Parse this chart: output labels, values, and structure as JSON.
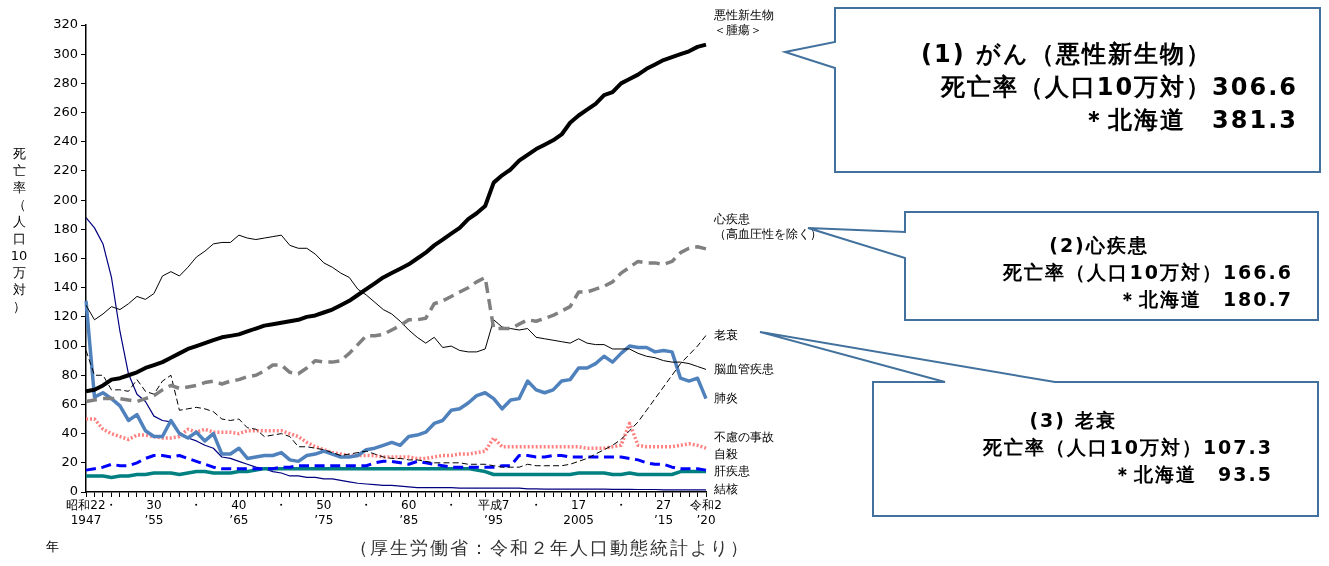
{
  "chart_data": {
    "type": "line",
    "ylabel": "死亡率（人口10万対）",
    "xlabel": "年",
    "annotations": [
      "(1) がん（悪性新生物）",
      "死亡率（人口10万対）306.6",
      "＊北海道　381.3",
      "(2)心疾患",
      "死亡率（人口10万対）166.6",
      "＊北海道　180.7",
      "(3) 老衰",
      "死亡率（人口10万対）107.3",
      "＊北海道　93.5",
      "（厚生労働省：令和２年人口動態統計より）"
    ],
    "categories": [
      "昭和22\n1947",
      null,
      null,
      "・",
      null,
      null,
      null,
      null,
      "30\n’55",
      null,
      null,
      null,
      null,
      "・",
      null,
      null,
      null,
      null,
      "40\n’65",
      null,
      null,
      null,
      null,
      "・",
      null,
      null,
      null,
      null,
      "50\n’75",
      null,
      null,
      null,
      null,
      "・",
      null,
      null,
      null,
      null,
      "60\n’85",
      null,
      null,
      null,
      null,
      "・",
      null,
      null,
      null,
      null,
      "平成7\n’95",
      null,
      null,
      null,
      null,
      "・",
      null,
      null,
      null,
      null,
      "17\n2005",
      null,
      null,
      null,
      null,
      "・",
      null,
      null,
      null,
      null,
      "27\n’15",
      null,
      null,
      null,
      null,
      "令和2\n’20"
    ],
    "ylim": [
      0,
      320
    ],
    "yticks": [
      0,
      20,
      40,
      60,
      80,
      100,
      120,
      140,
      160,
      180,
      200,
      220,
      240,
      260,
      280,
      300,
      320
    ],
    "grid": false,
    "legend": false,
    "marker": "none",
    "series": [
      {
        "name": "悪性新生物＜腫瘍＞",
        "color": "#000000",
        "line_style": "solid",
        "values": [
          69,
          70,
          73,
          77,
          78,
          80,
          82,
          85,
          87,
          89,
          92,
          95,
          98,
          100,
          102,
          104,
          106,
          107,
          108,
          110,
          112,
          114,
          115,
          116,
          117,
          118,
          120,
          121,
          123,
          125,
          128,
          131,
          135,
          139,
          143,
          147,
          150,
          153,
          156,
          160,
          164,
          169,
          173,
          177,
          181,
          187,
          191,
          196,
          212,
          217,
          221,
          227,
          231,
          235,
          238,
          241,
          245,
          253,
          258,
          262,
          266,
          272,
          274,
          280,
          283,
          286,
          290,
          293,
          296,
          298,
          300,
          302,
          305,
          306.6
        ]
      },
      {
        "name": "心疾患（高血圧性を除く）",
        "color": "#808080",
        "line_style": "dashed",
        "values": [
          62,
          63,
          64,
          64,
          64,
          63,
          62,
          64,
          66,
          70,
          73,
          71,
          72,
          73,
          75,
          76,
          74,
          76,
          77,
          79,
          80,
          83,
          87,
          87,
          82,
          81,
          85,
          90,
          89,
          89,
          90,
          95,
          101,
          107,
          107,
          108,
          111,
          114,
          118,
          118,
          119,
          129,
          131,
          134,
          137,
          140,
          144,
          147,
          112,
          112,
          112,
          115,
          118,
          117,
          119,
          121,
          124,
          127,
          137,
          137,
          139,
          141,
          144,
          150,
          154,
          158,
          157,
          157,
          156,
          158,
          164,
          167,
          168,
          166.6
        ]
      },
      {
        "name": "老衰",
        "color": "#000000",
        "line_style": "dashed",
        "values": [
          97,
          80,
          80,
          70,
          70,
          69,
          77,
          69,
          67,
          76,
          80,
          56,
          57,
          58,
          57,
          55,
          50,
          49,
          50,
          44,
          43,
          38,
          39,
          40,
          38,
          31,
          31,
          30,
          29,
          27,
          25,
          26,
          27,
          28,
          26,
          24,
          23,
          23,
          22,
          22,
          21,
          20,
          20,
          20,
          20,
          19,
          19,
          19,
          18,
          17,
          17,
          17,
          19,
          18,
          18,
          18,
          18,
          19,
          21,
          23,
          26,
          29,
          32,
          36,
          42,
          48,
          56,
          64,
          72,
          80,
          88,
          94,
          100,
          107.3
        ]
      },
      {
        "name": "脳血管疾患",
        "color": "#000000",
        "line_style": "solid",
        "values": [
          128,
          118,
          122,
          127,
          125,
          129,
          134,
          132,
          136,
          148,
          151,
          148,
          154,
          161,
          165,
          170,
          171,
          171,
          176,
          174,
          173,
          174,
          175,
          176,
          169,
          167,
          167,
          163,
          157,
          154,
          150,
          147,
          139,
          135,
          130,
          125,
          122,
          117,
          111,
          106,
          102,
          106,
          99,
          100,
          97,
          96,
          96,
          98,
          118,
          113,
          112,
          111,
          112,
          106,
          105,
          104,
          103,
          102,
          105,
          102,
          101,
          101,
          98,
          98,
          98,
          95,
          93,
          92,
          90,
          89,
          89,
          88,
          86,
          84
        ]
      },
      {
        "name": "肺炎",
        "color": "#4f81bd",
        "line_style": "solid",
        "values": [
          131,
          65,
          68,
          64,
          59,
          49,
          53,
          42,
          38,
          38,
          49,
          40,
          37,
          41,
          35,
          40,
          26,
          26,
          30,
          23,
          24,
          25,
          25,
          27,
          22,
          21,
          25,
          26,
          28,
          26,
          24,
          24,
          25,
          29,
          30,
          32,
          34,
          32,
          38,
          39,
          41,
          47,
          49,
          56,
          57,
          61,
          66,
          68,
          64,
          57,
          63,
          64,
          76,
          70,
          68,
          70,
          76,
          77,
          85,
          85,
          88,
          93,
          89,
          95,
          100,
          99,
          99,
          96,
          97,
          96,
          78,
          76,
          78,
          64
        ]
      },
      {
        "name": "不慮の事故",
        "color": "#ff8080",
        "line_style": "dotted",
        "values": [
          50,
          50,
          43,
          40,
          38,
          36,
          39,
          39,
          38,
          37,
          37,
          38,
          43,
          41,
          43,
          41,
          41,
          41,
          40,
          42,
          42,
          42,
          42,
          42,
          40,
          38,
          34,
          31,
          29,
          27,
          26,
          25,
          25,
          25,
          25,
          24,
          24,
          24,
          24,
          23,
          23,
          24,
          25,
          25,
          26,
          26,
          27,
          28,
          37,
          31,
          31,
          31,
          31,
          31,
          31,
          31,
          31,
          31,
          31,
          30,
          30,
          30,
          31,
          32,
          47,
          32,
          31,
          31,
          31,
          31,
          32,
          33,
          32,
          30
        ]
      },
      {
        "name": "自殺",
        "color": "#0000ff",
        "line_style": "dashed",
        "values": [
          15,
          16,
          17,
          19,
          18,
          18,
          20,
          23,
          25,
          25,
          24,
          25,
          23,
          21,
          19,
          17,
          16,
          16,
          16,
          16,
          16,
          16,
          16,
          17,
          17,
          18,
          18,
          18,
          18,
          18,
          18,
          18,
          18,
          18,
          20,
          21,
          21,
          20,
          19,
          21,
          20,
          19,
          18,
          17,
          17,
          17,
          17,
          17,
          17,
          18,
          18,
          25,
          25,
          24,
          24,
          25,
          25,
          24,
          24,
          24,
          24,
          24,
          24,
          24,
          23,
          22,
          20,
          19,
          19,
          17,
          16,
          16,
          16,
          15
        ]
      },
      {
        "name": "肝疾患",
        "color": "#008080",
        "line_style": "solid",
        "values": [
          11,
          11,
          11,
          10,
          11,
          11,
          12,
          12,
          13,
          13,
          13,
          12,
          13,
          14,
          14,
          13,
          13,
          13,
          14,
          14,
          15,
          16,
          16,
          16,
          16,
          16,
          16,
          16,
          16,
          16,
          16,
          16,
          16,
          16,
          16,
          16,
          16,
          16,
          16,
          16,
          16,
          16,
          16,
          16,
          16,
          16,
          15,
          14,
          12,
          12,
          12,
          12,
          12,
          12,
          12,
          12,
          12,
          12,
          13,
          13,
          13,
          13,
          12,
          12,
          13,
          12,
          12,
          12,
          12,
          12,
          14,
          14,
          14,
          14
        ]
      },
      {
        "name": "結核",
        "color": "#000080",
        "line_style": "solid",
        "values": [
          188,
          181,
          170,
          147,
          110,
          81,
          67,
          62,
          52,
          49,
          48,
          41,
          37,
          35,
          32,
          30,
          24,
          23,
          21,
          19,
          17,
          16,
          14,
          13,
          11,
          11,
          10,
          10,
          9,
          9,
          8,
          7,
          6,
          5.5,
          5,
          4.5,
          4.5,
          4,
          3.5,
          3,
          3,
          3,
          3,
          3,
          2.7,
          2.7,
          2.7,
          2.7,
          2.7,
          2.7,
          2.7,
          2.7,
          2.2,
          2.1,
          2,
          2,
          2,
          2,
          2,
          2,
          2,
          2,
          1.8,
          1.8,
          1.8,
          1.7,
          1.7,
          1.7,
          1.5,
          1.5,
          1.5,
          1.5,
          1.5,
          1.5
        ]
      }
    ]
  }
}
